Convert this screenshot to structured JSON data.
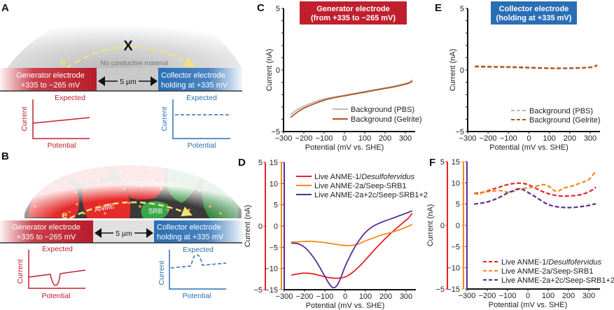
{
  "colors": {
    "generator_red": "#c0202e",
    "collector_blue": "#2a6fb5",
    "series_red": "#e8202a",
    "series_orange": "#f08a1c",
    "series_purple": "#5a2d91",
    "bg_pbs": "#b8b8b8",
    "bg_gelrite": "#b5521a",
    "electron_yellow": "#f5e27a",
    "anme_red": "#e52b2b",
    "srb_green": "#3aa64a",
    "cytochrome_orange": "#f5a04a"
  },
  "panel_a": {
    "label": "A",
    "cross_mark": "X",
    "electron": "e",
    "electron_sup": "−",
    "no_conductive": "No conductive material",
    "generator_line1": "Generator electrode",
    "generator_line2": "+335 to −265 mV",
    "gap": "5 µm",
    "collector_line1": "Collector electrode",
    "collector_line2": "holding at +335 mV",
    "gen_expected": {
      "title": "Expected",
      "ylabel": "Current",
      "xlabel": "Potential"
    },
    "col_expected": {
      "title": "Expected",
      "ylabel": "Current",
      "xlabel": "Potential"
    }
  },
  "panel_b": {
    "label": "B",
    "cytochrome": "Cytochrome ",
    "cytochrome_italic": "c",
    "anme": "ANME",
    "srb": "SRB",
    "electron": "e",
    "electron_sup": "−",
    "generator_line1": "Generator electrode",
    "generator_line2": "+335 to −265 mV",
    "gap": "5 µm",
    "collector_line1": "Collector electrode",
    "collector_line2": "holding at +335 mV",
    "gen_expected": {
      "title": "Expected",
      "ylabel": "Current",
      "xlabel": "Potential"
    },
    "col_expected": {
      "title": "Expected",
      "ylabel": "Current",
      "xlabel": "Potential"
    }
  },
  "chart_data": [
    {
      "id": "C",
      "type": "line",
      "panel_label": "C",
      "header_line1": "Generator electrode",
      "header_line2": "(from +335 to −265 mV)",
      "xlabel": "Potential (mV vs. SHE)",
      "ylabel": "Current (nA)",
      "xlim": [
        -300,
        350
      ],
      "xticks": [
        -300,
        -200,
        -100,
        0,
        100,
        200,
        300
      ],
      "xtick_labels": [
        "−300",
        "−200",
        "−100",
        "0",
        "100",
        "200",
        "300"
      ],
      "yaxes": [
        {
          "ylim": [
            -5,
            5
          ],
          "ticks": [
            -5,
            0,
            5
          ],
          "tick_labels": [
            "−5",
            "0",
            "5"
          ],
          "minor_step": 1,
          "color": "#111111"
        }
      ],
      "legend": "bottom-right",
      "series": [
        {
          "name": "Background (PBS)",
          "dash": false,
          "axis": 0,
          "color_key": "bg_pbs",
          "x": [
            -265,
            -230,
            -200,
            -150,
            -100,
            -50,
            0,
            50,
            100,
            150,
            200,
            250,
            300,
            320,
            335
          ],
          "y": [
            -3.6,
            -3.2,
            -2.95,
            -2.6,
            -2.35,
            -2.2,
            -2.05,
            -1.9,
            -1.75,
            -1.6,
            -1.45,
            -1.3,
            -1.1,
            -1.0,
            -0.8
          ]
        },
        {
          "name": "Background (Gelrite)",
          "dash": false,
          "axis": 0,
          "color_key": "bg_gelrite",
          "x": [
            -265,
            -230,
            -200,
            -150,
            -100,
            -50,
            0,
            50,
            100,
            150,
            200,
            250,
            300,
            320,
            335
          ],
          "y": [
            -3.85,
            -3.4,
            -3.1,
            -2.75,
            -2.45,
            -2.25,
            -2.1,
            -1.95,
            -1.8,
            -1.65,
            -1.5,
            -1.35,
            -1.15,
            -1.05,
            -0.9
          ]
        }
      ]
    },
    {
      "id": "E",
      "type": "line",
      "panel_label": "E",
      "header_line1": "Collector electrode",
      "header_line2": "(holding at +335 mV)",
      "xlabel": "Potential (mV vs. SHE)",
      "ylabel": "Current (nA)",
      "xlim": [
        -300,
        350
      ],
      "xticks": [
        -300,
        -200,
        -100,
        0,
        100,
        200,
        300
      ],
      "xtick_labels": [
        "−300",
        "−200",
        "−100",
        "0",
        "100",
        "200",
        "300"
      ],
      "yaxes": [
        {
          "ylim": [
            -5,
            5
          ],
          "ticks": [
            -5,
            0,
            5
          ],
          "tick_labels": [
            "−5",
            "0",
            "5"
          ],
          "minor_step": 1,
          "color": "#111111"
        }
      ],
      "legend": "bottom-right",
      "series": [
        {
          "name": "Background (PBS)",
          "dash": true,
          "axis": 0,
          "color_key": "bg_pbs",
          "x": [
            -265,
            -200,
            -100,
            0,
            100,
            200,
            300,
            335
          ],
          "y": [
            0.25,
            0.22,
            0.2,
            0.15,
            0.12,
            0.12,
            0.2,
            0.35
          ]
        },
        {
          "name": "Background (Gelrite)",
          "dash": true,
          "axis": 0,
          "color_key": "bg_gelrite",
          "x": [
            -265,
            -200,
            -100,
            0,
            100,
            200,
            300,
            335
          ],
          "y": [
            0.3,
            0.27,
            0.25,
            0.2,
            0.15,
            0.15,
            0.22,
            0.4
          ]
        }
      ]
    },
    {
      "id": "D",
      "type": "line",
      "panel_label": "D",
      "xlabel": "Potential (mV vs. SHE)",
      "ylabel": "Current (nA)",
      "xlim": [
        -300,
        350
      ],
      "xticks": [
        -300,
        -200,
        -100,
        0,
        100,
        200,
        300
      ],
      "xtick_labels": [
        "−300",
        "−200",
        "−100",
        "0",
        "100",
        "200",
        "300"
      ],
      "yaxes": [
        {
          "ylim": [
            -5,
            5
          ],
          "ticks": [
            -5,
            0,
            5
          ],
          "tick_labels": [
            "−5",
            "0",
            "5"
          ],
          "minor_step": 5,
          "color": "#e8202a"
        },
        {
          "ylim": [
            -15,
            15
          ],
          "ticks": [
            -15,
            -10,
            -5,
            0,
            5,
            10,
            15
          ],
          "tick_labels": [
            "−15",
            "−10",
            "−5",
            "0",
            "5",
            "10",
            "15"
          ],
          "minor_step": 5,
          "color": "#f08a1c"
        },
        {
          "ylim": [
            -15,
            15
          ],
          "ticks": [],
          "tick_labels": [],
          "minor_step": 5,
          "color": "#5a2d91"
        }
      ],
      "legend": "top-right",
      "series": [
        {
          "name": "Live ANME-1/",
          "name_italic": "Desulfofervidus",
          "dash": false,
          "axis": 0,
          "color_key": "series_red",
          "x": [
            -265,
            -230,
            -200,
            -160,
            -120,
            -80,
            -40,
            0,
            40,
            80,
            120,
            160,
            200,
            240,
            280,
            310,
            330
          ],
          "y": [
            -3.85,
            -3.75,
            -3.7,
            -3.75,
            -3.9,
            -4.05,
            -4.1,
            -4.0,
            -3.6,
            -3.0,
            -2.3,
            -1.6,
            -0.95,
            -0.35,
            0.2,
            0.6,
            1.0
          ]
        },
        {
          "name": "Live ANME-2a/Seep-SRB1",
          "name_italic": "",
          "dash": false,
          "axis": 1,
          "color_key": "series_orange",
          "x": [
            -265,
            -220,
            -180,
            -140,
            -100,
            -60,
            -20,
            20,
            60,
            100,
            140,
            180,
            220,
            260,
            300,
            330
          ],
          "y": [
            -3.8,
            -3.7,
            -3.6,
            -3.7,
            -3.9,
            -4.2,
            -4.5,
            -4.6,
            -4.3,
            -3.5,
            -2.8,
            -2.1,
            -1.6,
            -1.0,
            -0.3,
            0.4
          ]
        },
        {
          "name": "Live ANME-2a+2c/Seep-SRB1+2",
          "name_italic": "",
          "dash": false,
          "axis": 2,
          "color_key": "series_purple",
          "x": [
            -265,
            -230,
            -200,
            -170,
            -140,
            -110,
            -80,
            -60,
            -40,
            -20,
            0,
            30,
            60,
            100,
            140,
            180,
            220,
            260,
            300,
            330
          ],
          "y": [
            -4.0,
            -4.2,
            -5.0,
            -6.5,
            -8.5,
            -11.0,
            -13.5,
            -14.5,
            -14.0,
            -12.0,
            -9.5,
            -6.5,
            -4.0,
            -1.5,
            0.0,
            0.9,
            1.6,
            2.3,
            3.0,
            3.6
          ]
        }
      ]
    },
    {
      "id": "F",
      "type": "line",
      "panel_label": "F",
      "xlabel": "Potential (mV vs. SHE)",
      "ylabel": "Current (nA)",
      "xlim": [
        -300,
        350
      ],
      "xticks": [
        -300,
        -200,
        -100,
        0,
        100,
        200,
        300
      ],
      "xtick_labels": [
        "−300",
        "−200",
        "−100",
        "0",
        "100",
        "200",
        "300"
      ],
      "yaxes": [
        {
          "ylim": [
            -5,
            5
          ],
          "ticks": [
            -5,
            0,
            5
          ],
          "tick_labels": [
            "−5",
            "0",
            "5"
          ],
          "minor_step": 5,
          "color": "#e8202a"
        },
        {
          "ylim": [
            -15,
            15
          ],
          "ticks": [
            -15,
            -10,
            -5,
            0,
            5,
            10,
            15
          ],
          "tick_labels": [
            "−15",
            "−10",
            "−5",
            "0",
            "5",
            "10",
            "15"
          ],
          "minor_step": 5,
          "color": "#f08a1c"
        },
        {
          "ylim": [
            -15,
            15
          ],
          "ticks": [],
          "tick_labels": [],
          "minor_step": 5,
          "color": "#5a2d91"
        }
      ],
      "legend": "bottom-right",
      "series": [
        {
          "name": "Live ANME-1/",
          "name_italic": "Desulfofervidus",
          "dash": true,
          "axis": 0,
          "color_key": "series_red",
          "x": [
            -265,
            -220,
            -180,
            -140,
            -100,
            -60,
            -30,
            0,
            40,
            80,
            120,
            160,
            200,
            240,
            280,
            320,
            335
          ],
          "y": [
            2.5,
            2.6,
            2.8,
            3.0,
            3.2,
            3.3,
            3.3,
            3.2,
            2.9,
            2.6,
            2.4,
            2.3,
            2.3,
            2.35,
            2.5,
            2.8,
            3.0
          ]
        },
        {
          "name": "Live ANME-2a/Seep-SRB1",
          "name_italic": "",
          "dash": true,
          "axis": 1,
          "color_key": "series_orange",
          "x": [
            -265,
            -240,
            -220,
            -180,
            -140,
            -100,
            -70,
            -40,
            0,
            40,
            80,
            110,
            140,
            180,
            220,
            260,
            300,
            335
          ],
          "y": [
            7.5,
            7.3,
            7.8,
            8.0,
            8.2,
            7.8,
            8.0,
            8.6,
            8.8,
            9.2,
            9.6,
            9.0,
            8.0,
            8.8,
            9.3,
            10.0,
            10.8,
            12.8
          ]
        },
        {
          "name": "Live ANME-2a+2c/Seep-SRB1+2",
          "name_italic": "",
          "dash": true,
          "axis": 2,
          "color_key": "series_purple",
          "x": [
            -265,
            -220,
            -180,
            -140,
            -100,
            -60,
            -40,
            -20,
            20,
            60,
            100,
            140,
            180,
            220,
            260,
            300,
            335
          ],
          "y": [
            5.0,
            5.3,
            5.8,
            6.6,
            7.6,
            8.4,
            8.6,
            8.3,
            7.2,
            6.0,
            4.9,
            4.4,
            4.2,
            4.2,
            4.4,
            4.7,
            5.1
          ]
        }
      ]
    }
  ]
}
